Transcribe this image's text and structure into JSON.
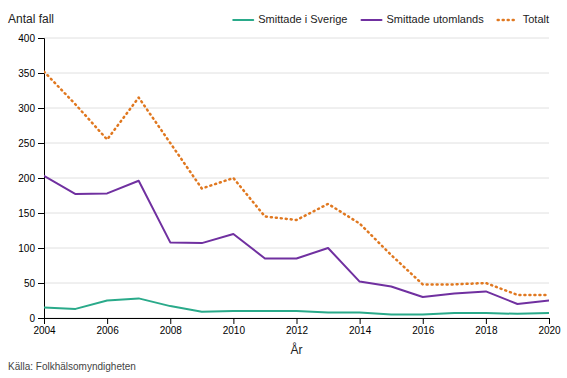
{
  "chart_data": {
    "type": "line",
    "x": [
      2004,
      2005,
      2006,
      2007,
      2008,
      2009,
      2010,
      2011,
      2012,
      2013,
      2014,
      2015,
      2016,
      2017,
      2018,
      2019,
      2020
    ],
    "series": [
      {
        "name": "Smittade i Sverige",
        "color": "#2aaa8a",
        "line_style": "solid",
        "values": [
          15,
          13,
          25,
          28,
          17,
          9,
          10,
          10,
          10,
          8,
          8,
          5,
          5,
          7,
          7,
          6,
          7
        ]
      },
      {
        "name": "Smittade utomlands",
        "color": "#7030a0",
        "line_style": "solid",
        "values": [
          203,
          177,
          178,
          196,
          108,
          107,
          120,
          85,
          85,
          100,
          52,
          45,
          30,
          35,
          38,
          20,
          25
        ]
      },
      {
        "name": "Totalt",
        "color": "#e07820",
        "line_style": "dotted",
        "values": [
          352,
          305,
          255,
          315,
          250,
          185,
          200,
          145,
          140,
          163,
          135,
          90,
          48,
          48,
          50,
          33,
          33
        ]
      }
    ],
    "y_label": "Antal fall",
    "x_label": "År",
    "annotations": [
      "Källa: Folkhälsomyndigheten"
    ],
    "xlim": [
      2004,
      2020
    ],
    "xticks": [
      2004,
      2006,
      2008,
      2010,
      2012,
      2014,
      2016,
      2018,
      2020
    ],
    "ylim": [
      0,
      400
    ],
    "yticks": [
      0,
      50,
      100,
      150,
      200,
      250,
      300,
      350,
      400
    ],
    "grid": true,
    "legend": "upper right"
  }
}
